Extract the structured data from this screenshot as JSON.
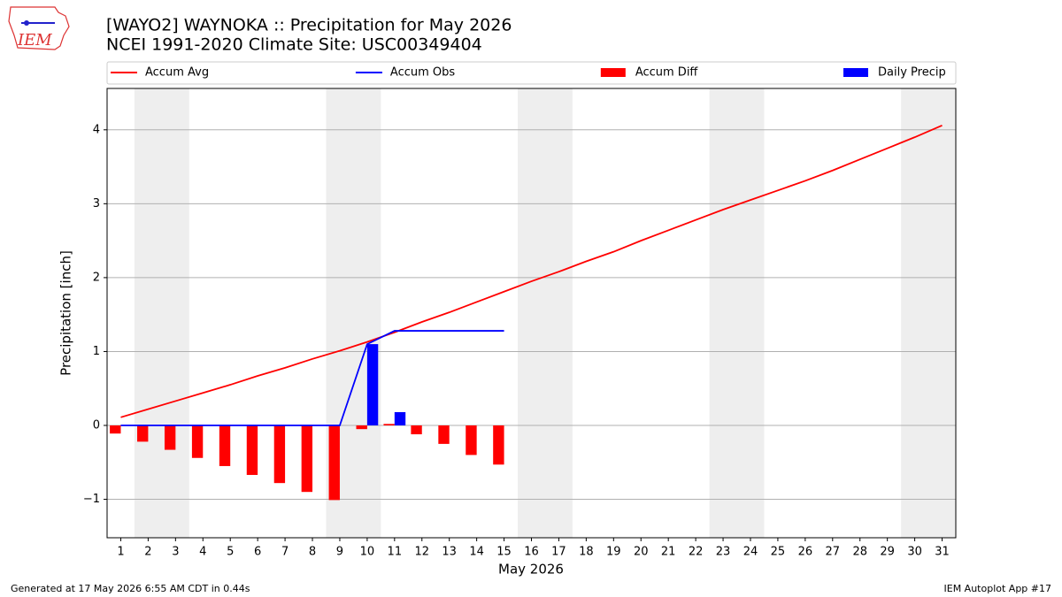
{
  "logo_text": "IEM",
  "chart_data": {
    "type": "combo",
    "title": "[WAYO2] WAYNOKA :: Precipitation for May 2026",
    "subtitle": "NCEI 1991-2020 Climate Site: USC00349404",
    "x_label": "May 2026",
    "y_label": "Precipitation [inch]",
    "footer_left": "Generated at 17 May 2026 6:55 AM CDT in 0.44s",
    "footer_right": "IEM Autoplot App #17",
    "categories": [
      "1",
      "2",
      "3",
      "4",
      "5",
      "6",
      "7",
      "8",
      "9",
      "10",
      "11",
      "12",
      "13",
      "14",
      "15",
      "16",
      "17",
      "18",
      "19",
      "20",
      "21",
      "22",
      "23",
      "24",
      "25",
      "26",
      "27",
      "28",
      "29",
      "30",
      "31"
    ],
    "ylim": [
      -1.52,
      4.56
    ],
    "yticks": [
      {
        "value": -1,
        "label": "−1"
      },
      0,
      1,
      2,
      3,
      4
    ],
    "grid": true,
    "legend": "top",
    "series": [
      {
        "name": "Accum Avg",
        "type": "line",
        "color": "#ff0000",
        "values": [
          0.11,
          0.22,
          0.33,
          0.44,
          0.55,
          0.67,
          0.78,
          0.9,
          1.01,
          1.13,
          1.26,
          1.4,
          1.53,
          1.67,
          1.81,
          1.95,
          2.08,
          2.22,
          2.35,
          2.5,
          2.64,
          2.78,
          2.92,
          3.05,
          3.18,
          3.31,
          3.45,
          3.6,
          3.75,
          3.9,
          4.06
        ]
      },
      {
        "name": "Accum Obs",
        "type": "line",
        "color": "#0000ff",
        "values": [
          0,
          0,
          0,
          0,
          0,
          0,
          0,
          0,
          0,
          1.1,
          1.28,
          1.28,
          1.28,
          1.28,
          1.28,
          null,
          null,
          null,
          null,
          null,
          null,
          null,
          null,
          null,
          null,
          null,
          null,
          null,
          null,
          null,
          null
        ]
      },
      {
        "name": "Accum Diff",
        "type": "bar",
        "color": "#ff0000",
        "values": [
          -0.11,
          -0.22,
          -0.33,
          -0.44,
          -0.55,
          -0.67,
          -0.78,
          -0.9,
          -1.01,
          -0.05,
          0.02,
          -0.12,
          -0.25,
          -0.4,
          -0.53,
          null,
          null,
          null,
          null,
          null,
          null,
          null,
          null,
          null,
          null,
          null,
          null,
          null,
          null,
          null,
          null
        ]
      },
      {
        "name": "Daily Precip",
        "type": "bar",
        "color": "#0000ff",
        "values": [
          0,
          0,
          0,
          0,
          0,
          0,
          0,
          0,
          0,
          1.1,
          0.18,
          0,
          0,
          0,
          0,
          null,
          null,
          null,
          null,
          null,
          null,
          null,
          null,
          null,
          null,
          null,
          null,
          null,
          null,
          null,
          null
        ]
      }
    ]
  }
}
